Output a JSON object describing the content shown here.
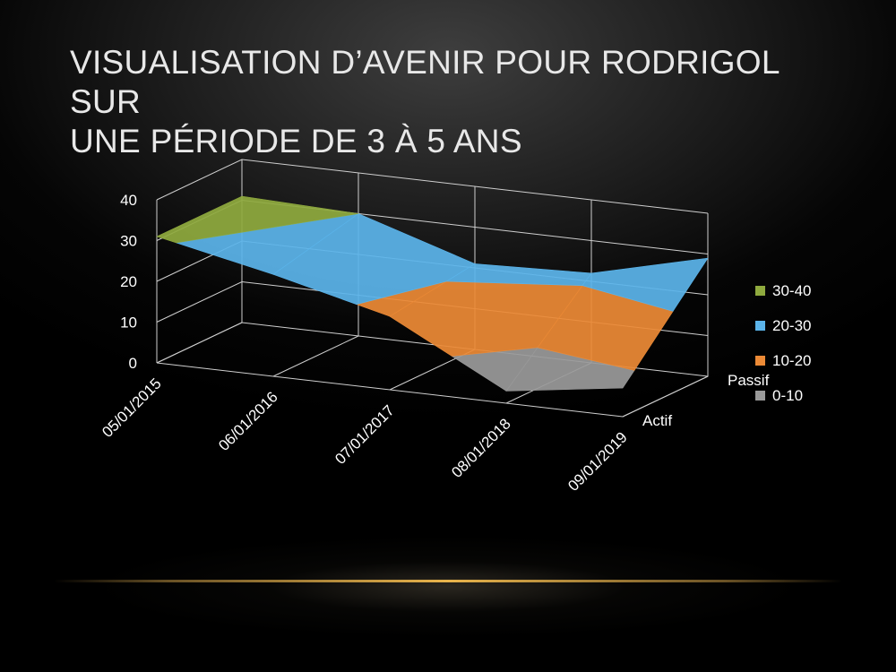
{
  "slide": {
    "title_line1": "VISUALISATION D’AVENIR POUR RODRIGOL SUR",
    "title_line2": "UNE PÉRIODE DE 3 À 5 ANS"
  },
  "chart_data": {
    "type": "area",
    "subtype": "3d-surface",
    "title": "",
    "x": [
      "05/01/2015",
      "06/01/2016",
      "07/01/2017",
      "08/01/2018",
      "09/01/2019"
    ],
    "depth_categories": [
      "Actif",
      "Passif"
    ],
    "series": [
      {
        "name": "Actif",
        "values": [
          31,
          25,
          18,
          3,
          7
        ]
      },
      {
        "name": "Passif",
        "values": [
          31,
          30,
          21,
          22,
          29
        ]
      }
    ],
    "zlim": [
      0,
      40
    ],
    "z_ticks": [
      0,
      10,
      20,
      30,
      40
    ],
    "grid": true,
    "legend": {
      "placement": "right",
      "entries": [
        {
          "label": "30-40",
          "color": "#8faa3e"
        },
        {
          "label": "20-30",
          "color": "#5bb4ea"
        },
        {
          "label": "10-20",
          "color": "#ec8a36"
        },
        {
          "label": "0-10",
          "color": "#9a9a9a"
        }
      ]
    }
  }
}
